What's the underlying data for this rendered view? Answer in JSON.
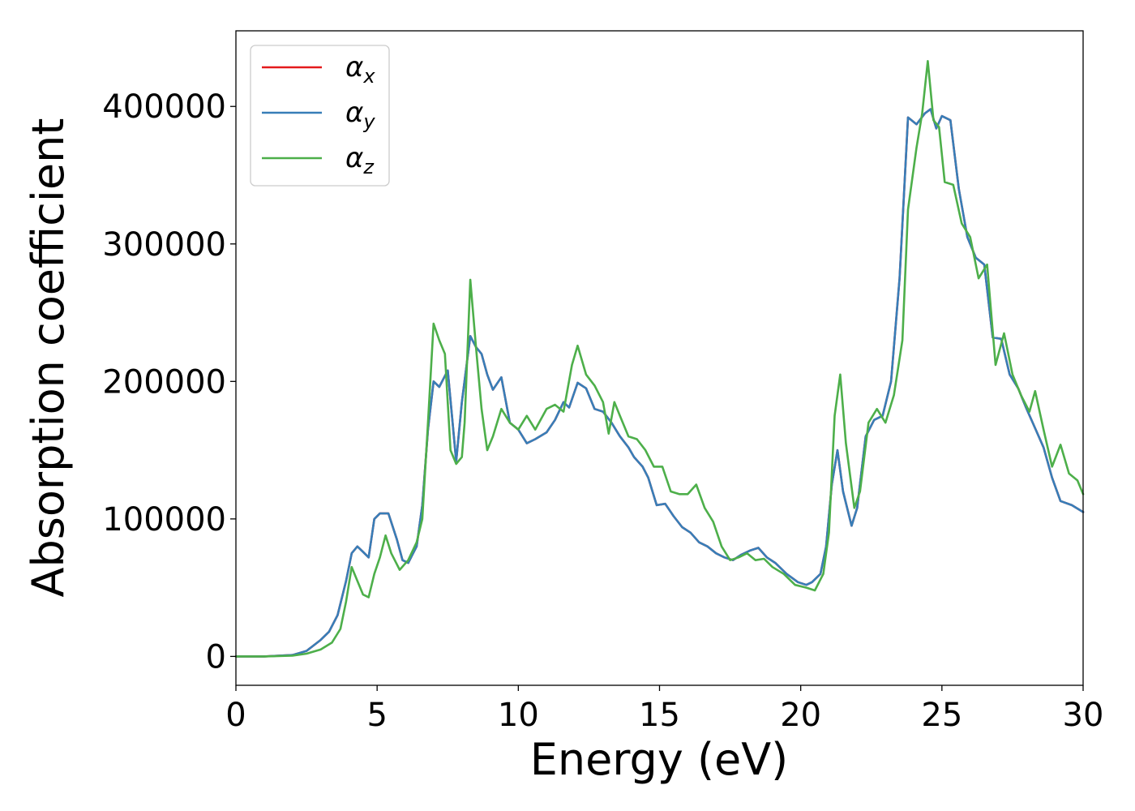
{
  "chart_data": {
    "type": "line",
    "xlabel": "Energy (eV)",
    "ylabel": "Absorption coefficient",
    "xlim": [
      0,
      30
    ],
    "ylim": [
      -21000,
      455000
    ],
    "x_ticks": [
      0,
      5,
      10,
      15,
      20,
      25,
      30
    ],
    "y_ticks": [
      0,
      100000,
      200000,
      300000,
      400000
    ],
    "grid": false,
    "legend_position": "top-left",
    "series": [
      {
        "name_main": "α",
        "name_sub": "x",
        "color": "#e41a1c",
        "points": [
          [
            0,
            0
          ],
          [
            1,
            0
          ],
          [
            2,
            1000
          ],
          [
            2.5,
            4000
          ],
          [
            3,
            12000
          ],
          [
            3.3,
            18000
          ],
          [
            3.6,
            30000
          ],
          [
            3.9,
            55000
          ],
          [
            4.1,
            75000
          ],
          [
            4.3,
            80000
          ],
          [
            4.5,
            76000
          ],
          [
            4.7,
            72000
          ],
          [
            4.9,
            100000
          ],
          [
            5.1,
            104000
          ],
          [
            5.4,
            104000
          ],
          [
            5.7,
            85000
          ],
          [
            5.9,
            70000
          ],
          [
            6.1,
            68000
          ],
          [
            6.4,
            80000
          ],
          [
            6.6,
            110000
          ],
          [
            6.8,
            165000
          ],
          [
            7.0,
            200000
          ],
          [
            7.2,
            196000
          ],
          [
            7.5,
            208000
          ],
          [
            7.8,
            142000
          ],
          [
            8.0,
            185000
          ],
          [
            8.3,
            233000
          ],
          [
            8.5,
            225000
          ],
          [
            8.7,
            220000
          ],
          [
            8.9,
            205000
          ],
          [
            9.1,
            194000
          ],
          [
            9.4,
            203000
          ],
          [
            9.7,
            170000
          ],
          [
            10.0,
            165000
          ],
          [
            10.3,
            155000
          ],
          [
            10.6,
            158000
          ],
          [
            11.0,
            163000
          ],
          [
            11.3,
            172000
          ],
          [
            11.6,
            185000
          ],
          [
            11.8,
            181000
          ],
          [
            12.1,
            199000
          ],
          [
            12.4,
            195000
          ],
          [
            12.7,
            180000
          ],
          [
            13.0,
            178000
          ],
          [
            13.3,
            170000
          ],
          [
            13.6,
            160000
          ],
          [
            13.9,
            152000
          ],
          [
            14.1,
            145000
          ],
          [
            14.4,
            138000
          ],
          [
            14.6,
            130000
          ],
          [
            14.9,
            110000
          ],
          [
            15.2,
            111000
          ],
          [
            15.5,
            102000
          ],
          [
            15.8,
            94000
          ],
          [
            16.1,
            90000
          ],
          [
            16.4,
            83000
          ],
          [
            16.7,
            80000
          ],
          [
            17.0,
            75000
          ],
          [
            17.3,
            72000
          ],
          [
            17.6,
            70000
          ],
          [
            17.9,
            74000
          ],
          [
            18.2,
            77000
          ],
          [
            18.5,
            79000
          ],
          [
            18.8,
            72000
          ],
          [
            19.1,
            68000
          ],
          [
            19.5,
            60000
          ],
          [
            19.9,
            54000
          ],
          [
            20.2,
            52000
          ],
          [
            20.4,
            54000
          ],
          [
            20.7,
            60000
          ],
          [
            20.9,
            80000
          ],
          [
            21.1,
            125000
          ],
          [
            21.3,
            150000
          ],
          [
            21.5,
            120000
          ],
          [
            21.8,
            95000
          ],
          [
            22.0,
            108000
          ],
          [
            22.3,
            160000
          ],
          [
            22.6,
            172000
          ],
          [
            22.9,
            175000
          ],
          [
            23.2,
            200000
          ],
          [
            23.5,
            275000
          ],
          [
            23.8,
            392000
          ],
          [
            24.1,
            387000
          ],
          [
            24.4,
            395000
          ],
          [
            24.6,
            398000
          ],
          [
            24.8,
            384000
          ],
          [
            25.0,
            393000
          ],
          [
            25.3,
            390000
          ],
          [
            25.6,
            340000
          ],
          [
            25.9,
            305000
          ],
          [
            26.2,
            290000
          ],
          [
            26.5,
            285000
          ],
          [
            26.8,
            232000
          ],
          [
            27.1,
            231000
          ],
          [
            27.4,
            205000
          ],
          [
            27.7,
            195000
          ],
          [
            28.0,
            180000
          ],
          [
            28.3,
            166000
          ],
          [
            28.6,
            152000
          ],
          [
            28.9,
            130000
          ],
          [
            29.2,
            113000
          ],
          [
            29.6,
            110000
          ],
          [
            30.0,
            105000
          ]
        ]
      },
      {
        "name_main": "α",
        "name_sub": "y",
        "color": "#377eb8",
        "points": [
          [
            0,
            0
          ],
          [
            1,
            0
          ],
          [
            2,
            1000
          ],
          [
            2.5,
            4000
          ],
          [
            3,
            12000
          ],
          [
            3.3,
            18000
          ],
          [
            3.6,
            30000
          ],
          [
            3.9,
            55000
          ],
          [
            4.1,
            75000
          ],
          [
            4.3,
            80000
          ],
          [
            4.5,
            76000
          ],
          [
            4.7,
            72000
          ],
          [
            4.9,
            100000
          ],
          [
            5.1,
            104000
          ],
          [
            5.4,
            104000
          ],
          [
            5.7,
            85000
          ],
          [
            5.9,
            70000
          ],
          [
            6.1,
            68000
          ],
          [
            6.4,
            80000
          ],
          [
            6.6,
            110000
          ],
          [
            6.8,
            165000
          ],
          [
            7.0,
            200000
          ],
          [
            7.2,
            196000
          ],
          [
            7.5,
            208000
          ],
          [
            7.8,
            142000
          ],
          [
            8.0,
            185000
          ],
          [
            8.3,
            233000
          ],
          [
            8.5,
            225000
          ],
          [
            8.7,
            220000
          ],
          [
            8.9,
            205000
          ],
          [
            9.1,
            194000
          ],
          [
            9.4,
            203000
          ],
          [
            9.7,
            170000
          ],
          [
            10.0,
            165000
          ],
          [
            10.3,
            155000
          ],
          [
            10.6,
            158000
          ],
          [
            11.0,
            163000
          ],
          [
            11.3,
            172000
          ],
          [
            11.6,
            185000
          ],
          [
            11.8,
            181000
          ],
          [
            12.1,
            199000
          ],
          [
            12.4,
            195000
          ],
          [
            12.7,
            180000
          ],
          [
            13.0,
            178000
          ],
          [
            13.3,
            170000
          ],
          [
            13.6,
            160000
          ],
          [
            13.9,
            152000
          ],
          [
            14.1,
            145000
          ],
          [
            14.4,
            138000
          ],
          [
            14.6,
            130000
          ],
          [
            14.9,
            110000
          ],
          [
            15.2,
            111000
          ],
          [
            15.5,
            102000
          ],
          [
            15.8,
            94000
          ],
          [
            16.1,
            90000
          ],
          [
            16.4,
            83000
          ],
          [
            16.7,
            80000
          ],
          [
            17.0,
            75000
          ],
          [
            17.3,
            72000
          ],
          [
            17.6,
            70000
          ],
          [
            17.9,
            74000
          ],
          [
            18.2,
            77000
          ],
          [
            18.5,
            79000
          ],
          [
            18.8,
            72000
          ],
          [
            19.1,
            68000
          ],
          [
            19.5,
            60000
          ],
          [
            19.9,
            54000
          ],
          [
            20.2,
            52000
          ],
          [
            20.4,
            54000
          ],
          [
            20.7,
            60000
          ],
          [
            20.9,
            80000
          ],
          [
            21.1,
            125000
          ],
          [
            21.3,
            150000
          ],
          [
            21.5,
            120000
          ],
          [
            21.8,
            95000
          ],
          [
            22.0,
            108000
          ],
          [
            22.3,
            160000
          ],
          [
            22.6,
            172000
          ],
          [
            22.9,
            175000
          ],
          [
            23.2,
            200000
          ],
          [
            23.5,
            275000
          ],
          [
            23.8,
            392000
          ],
          [
            24.1,
            387000
          ],
          [
            24.4,
            395000
          ],
          [
            24.6,
            398000
          ],
          [
            24.8,
            384000
          ],
          [
            25.0,
            393000
          ],
          [
            25.3,
            390000
          ],
          [
            25.6,
            340000
          ],
          [
            25.9,
            305000
          ],
          [
            26.2,
            290000
          ],
          [
            26.5,
            285000
          ],
          [
            26.8,
            232000
          ],
          [
            27.1,
            231000
          ],
          [
            27.4,
            205000
          ],
          [
            27.7,
            195000
          ],
          [
            28.0,
            180000
          ],
          [
            28.3,
            166000
          ],
          [
            28.6,
            152000
          ],
          [
            28.9,
            130000
          ],
          [
            29.2,
            113000
          ],
          [
            29.6,
            110000
          ],
          [
            30.0,
            105000
          ]
        ]
      },
      {
        "name_main": "α",
        "name_sub": "z",
        "color": "#4daf4a",
        "points": [
          [
            0,
            0
          ],
          [
            1,
            0
          ],
          [
            2,
            500
          ],
          [
            2.5,
            2000
          ],
          [
            3,
            5000
          ],
          [
            3.4,
            10000
          ],
          [
            3.7,
            20000
          ],
          [
            3.9,
            40000
          ],
          [
            4.1,
            65000
          ],
          [
            4.3,
            55000
          ],
          [
            4.5,
            45000
          ],
          [
            4.7,
            43000
          ],
          [
            4.9,
            60000
          ],
          [
            5.1,
            72000
          ],
          [
            5.3,
            88000
          ],
          [
            5.5,
            75000
          ],
          [
            5.8,
            63000
          ],
          [
            6.1,
            70000
          ],
          [
            6.4,
            83000
          ],
          [
            6.6,
            100000
          ],
          [
            6.8,
            170000
          ],
          [
            7.0,
            242000
          ],
          [
            7.2,
            230000
          ],
          [
            7.4,
            220000
          ],
          [
            7.6,
            150000
          ],
          [
            7.8,
            140000
          ],
          [
            8.0,
            145000
          ],
          [
            8.1,
            170000
          ],
          [
            8.3,
            274000
          ],
          [
            8.5,
            225000
          ],
          [
            8.7,
            180000
          ],
          [
            8.9,
            150000
          ],
          [
            9.1,
            160000
          ],
          [
            9.4,
            180000
          ],
          [
            9.7,
            170000
          ],
          [
            10.0,
            165000
          ],
          [
            10.3,
            175000
          ],
          [
            10.6,
            165000
          ],
          [
            11.0,
            180000
          ],
          [
            11.3,
            183000
          ],
          [
            11.6,
            178000
          ],
          [
            11.9,
            212000
          ],
          [
            12.1,
            226000
          ],
          [
            12.4,
            205000
          ],
          [
            12.7,
            197000
          ],
          [
            13.0,
            185000
          ],
          [
            13.2,
            162000
          ],
          [
            13.4,
            185000
          ],
          [
            13.6,
            175000
          ],
          [
            13.9,
            160000
          ],
          [
            14.2,
            158000
          ],
          [
            14.5,
            150000
          ],
          [
            14.8,
            138000
          ],
          [
            15.1,
            138000
          ],
          [
            15.4,
            120000
          ],
          [
            15.7,
            118000
          ],
          [
            16.0,
            118000
          ],
          [
            16.3,
            125000
          ],
          [
            16.6,
            108000
          ],
          [
            16.9,
            98000
          ],
          [
            17.2,
            80000
          ],
          [
            17.5,
            70000
          ],
          [
            17.8,
            72000
          ],
          [
            18.1,
            75000
          ],
          [
            18.4,
            70000
          ],
          [
            18.7,
            71000
          ],
          [
            19.0,
            65000
          ],
          [
            19.4,
            60000
          ],
          [
            19.8,
            52000
          ],
          [
            20.2,
            50000
          ],
          [
            20.5,
            48000
          ],
          [
            20.8,
            60000
          ],
          [
            21.0,
            90000
          ],
          [
            21.2,
            175000
          ],
          [
            21.4,
            205000
          ],
          [
            21.6,
            155000
          ],
          [
            21.9,
            108000
          ],
          [
            22.1,
            120000
          ],
          [
            22.4,
            170000
          ],
          [
            22.7,
            180000
          ],
          [
            23.0,
            170000
          ],
          [
            23.3,
            190000
          ],
          [
            23.6,
            230000
          ],
          [
            23.8,
            325000
          ],
          [
            24.1,
            370000
          ],
          [
            24.3,
            395000
          ],
          [
            24.5,
            433000
          ],
          [
            24.7,
            390000
          ],
          [
            24.9,
            385000
          ],
          [
            25.1,
            345000
          ],
          [
            25.4,
            343000
          ],
          [
            25.7,
            315000
          ],
          [
            26.0,
            305000
          ],
          [
            26.3,
            275000
          ],
          [
            26.6,
            285000
          ],
          [
            26.9,
            212000
          ],
          [
            27.2,
            235000
          ],
          [
            27.5,
            205000
          ],
          [
            27.8,
            190000
          ],
          [
            28.1,
            178000
          ],
          [
            28.3,
            193000
          ],
          [
            28.6,
            165000
          ],
          [
            28.9,
            138000
          ],
          [
            29.2,
            154000
          ],
          [
            29.5,
            133000
          ],
          [
            29.8,
            128000
          ],
          [
            30.0,
            118000
          ]
        ]
      }
    ]
  }
}
